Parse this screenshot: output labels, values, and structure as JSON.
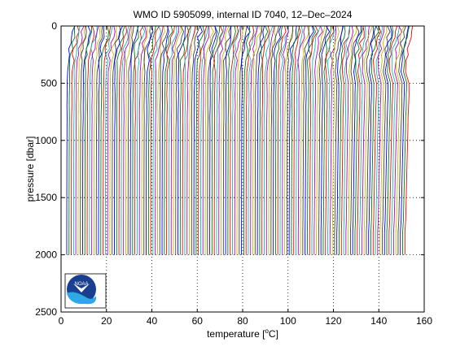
{
  "chart_data": {
    "type": "line",
    "title": "WMO ID 5905099, internal ID 7040, 12–Dec–2024",
    "xlabel": {
      "text": "temperature [",
      "sup": "o",
      "unit": "C]"
    },
    "ylabel": "pressure [dbar]",
    "xlim": [
      0,
      160
    ],
    "ylim": [
      0,
      2500
    ],
    "y_reversed": true,
    "x_ticks": [
      0,
      20,
      40,
      60,
      80,
      100,
      120,
      140,
      160
    ],
    "x_tick_labels": [
      "0",
      "20",
      "40",
      "60",
      "80",
      "100",
      "120",
      "140",
      "160"
    ],
    "y_ticks": [
      0,
      500,
      1000,
      1500,
      2000,
      2500
    ],
    "y_tick_labels": [
      "0",
      "500",
      "1000",
      "1500",
      "2000",
      "2500"
    ],
    "grid": "dotted",
    "series_colors": [
      "#0000ff",
      "#008000",
      "#ff0000",
      "#00bfbf",
      "#bf00bf",
      "#bfbf00",
      "#404040"
    ],
    "profile_count": 150,
    "profile_offset_step": 1,
    "profile_base_temperature": 2.5,
    "profile_surface_temperature": 5.5,
    "profile_pressures": [
      0,
      50,
      100,
      150,
      200,
      250,
      300,
      400,
      500,
      600,
      700,
      800,
      900,
      1000,
      1100,
      1200,
      1300,
      1400,
      1500,
      1600,
      1700,
      1800,
      1900,
      2000
    ],
    "profile_temperature_anomaly": [
      3.0,
      3.0,
      2.4,
      1.7,
      1.2,
      0.9,
      0.6,
      0.35,
      0.25,
      0.2,
      0.18,
      0.15,
      0.12,
      0.1,
      0.08,
      0.06,
      0.05,
      0.04,
      0.03,
      0.02,
      0.01,
      0.0,
      0.0,
      0.0
    ],
    "legend": "none"
  },
  "logo": {
    "text": "NOAA",
    "icon": "noaa-logo"
  }
}
